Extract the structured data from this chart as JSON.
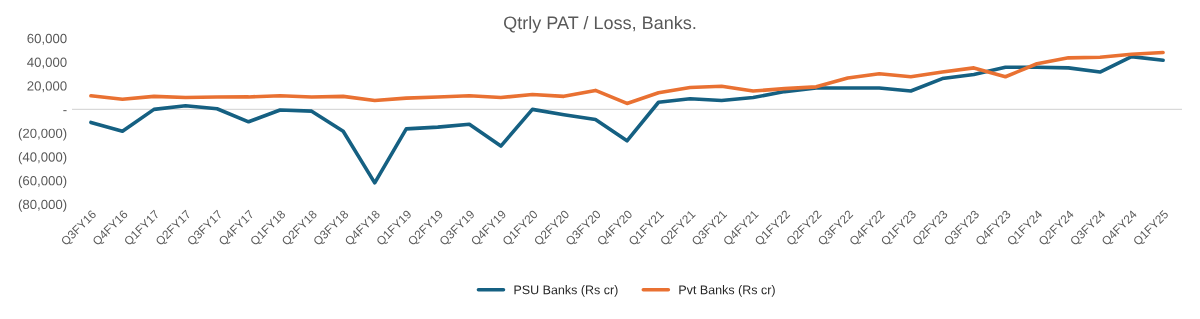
{
  "chart_data": {
    "type": "line",
    "title": "Qtrly PAT / Loss, Banks.",
    "categories": [
      "Q3FY16",
      "Q4FY16",
      "Q1FY17",
      "Q2FY17",
      "Q3FY17",
      "Q4FY17",
      "Q1FY18",
      "Q2FY18",
      "Q3FY18",
      "Q4FY18",
      "Q1FY19",
      "Q2FY19",
      "Q3FY19",
      "Q4FY19",
      "Q1FY20",
      "Q2FY20",
      "Q3FY20",
      "Q4FY20",
      "Q1FY21",
      "Q2FY21",
      "Q3FY21",
      "Q4FY21",
      "Q1FY22",
      "Q2FY22",
      "Q3FY22",
      "Q4FY22",
      "Q1FY23",
      "Q2FY23",
      "Q3FY23",
      "Q4FY23",
      "Q1FY24",
      "Q2FY24",
      "Q3FY24",
      "Q4FY24",
      "Q1FY25"
    ],
    "series": [
      {
        "name": "PSU Banks (Rs cr)",
        "color": "#156082",
        "values": [
          -11000,
          -18500,
          0,
          3000,
          500,
          -10500,
          -500,
          -1500,
          -18500,
          -62000,
          -16500,
          -15000,
          -12500,
          -31000,
          0,
          -4500,
          -8500,
          -26500,
          6000,
          9000,
          7500,
          10000,
          15000,
          18000,
          18000,
          18000,
          15500,
          26000,
          29500,
          35500,
          35500,
          35000,
          31500,
          44500,
          41500
        ]
      },
      {
        "name": "Pvt Banks (Rs cr)",
        "color": "#e97132",
        "values": [
          11500,
          8500,
          11000,
          10000,
          10500,
          10500,
          11500,
          10500,
          11000,
          7500,
          9500,
          10500,
          11500,
          10000,
          12500,
          11000,
          16000,
          5000,
          14000,
          18500,
          19500,
          15500,
          17500,
          19000,
          26500,
          30000,
          27500,
          31500,
          35000,
          27500,
          38500,
          43500,
          44000,
          46500,
          48000
        ]
      }
    ],
    "ylim": [
      -80000,
      60000
    ],
    "yticks": [
      {
        "value": -80000,
        "label": "(80,000)"
      },
      {
        "value": -60000,
        "label": "(60,000)"
      },
      {
        "value": -40000,
        "label": "(40,000)"
      },
      {
        "value": -20000,
        "label": "(20,000)"
      },
      {
        "value": 0,
        "label": "-"
      },
      {
        "value": 20000,
        "label": "20,000"
      },
      {
        "value": 40000,
        "label": "40,000"
      },
      {
        "value": 60000,
        "label": "60,000"
      }
    ],
    "ref_lines": [
      {
        "axis": "y",
        "value": 0,
        "color": "#d9d9d9"
      }
    ],
    "grid": false,
    "legend": "bottom",
    "marker": "none",
    "line_style": "solid"
  }
}
